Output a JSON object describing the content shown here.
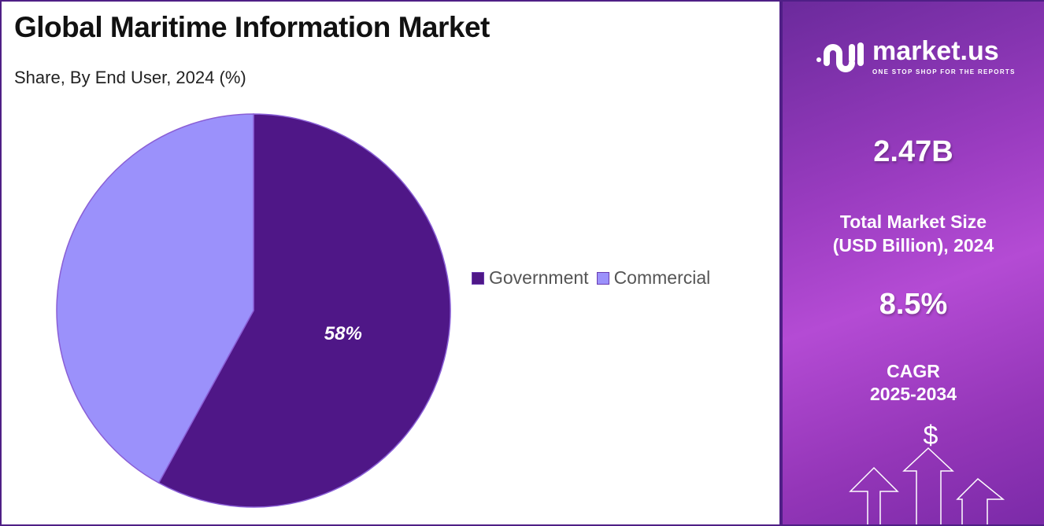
{
  "chart_data": {
    "type": "pie",
    "title": "Global Maritime Information Market",
    "subtitle": "Share, By End User, 2024 (%)",
    "categories": [
      "Government",
      "Commercial"
    ],
    "values": [
      58,
      42
    ],
    "colors": [
      "#4f1787",
      "#9b91fb"
    ],
    "data_labels": [
      "58%",
      ""
    ],
    "legend_position": "right"
  },
  "sidebar": {
    "logo_name": "market.us",
    "logo_tagline": "ONE STOP SHOP FOR THE REPORTS",
    "market_size": "2.47B",
    "market_size_label_1": "Total Market Size",
    "market_size_label_2": "(USD Billion), 2024",
    "cagr": "8.5%",
    "cagr_label_1": "CAGR",
    "cagr_label_2": "2025-2034",
    "dollar_symbol": "$"
  }
}
